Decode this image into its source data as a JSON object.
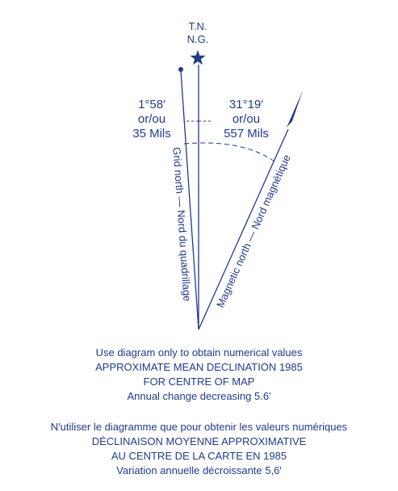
{
  "diagram": {
    "true_north_label": "T.N.",
    "grid_north_short_label": "N.G.",
    "grid_angle": {
      "degrees": "1°58′",
      "connector": "or/ou",
      "mils": "35 Mils"
    },
    "magnetic_angle": {
      "degrees": "31°19′",
      "connector": "or/ou",
      "mils": "557 Mils"
    },
    "grid_north_line_label": "Grid north — Nord du quadrillage",
    "magnetic_north_line_label": "Magnetic north — Nord magnétique"
  },
  "caption_en": {
    "line1": "Use diagram only to obtain numerical values",
    "line2": "APPROXIMATE MEAN DECLINATION 1985",
    "line3": "FOR CENTRE OF MAP",
    "line4": "Annual change decreasing 5.6′"
  },
  "caption_fr": {
    "line1": "N'utiliser le diagramme que pour obtenir les valeurs numériques",
    "line2": "DÉCLINAISON MOYENNE APPROXIMATIVE",
    "line3": "AU CENTRE DE LA CARTE EN 1985",
    "line4": "Variation annuelle décroissante 5,6′"
  },
  "colors": {
    "ink": "#203a8c",
    "background": "#ffffff"
  }
}
